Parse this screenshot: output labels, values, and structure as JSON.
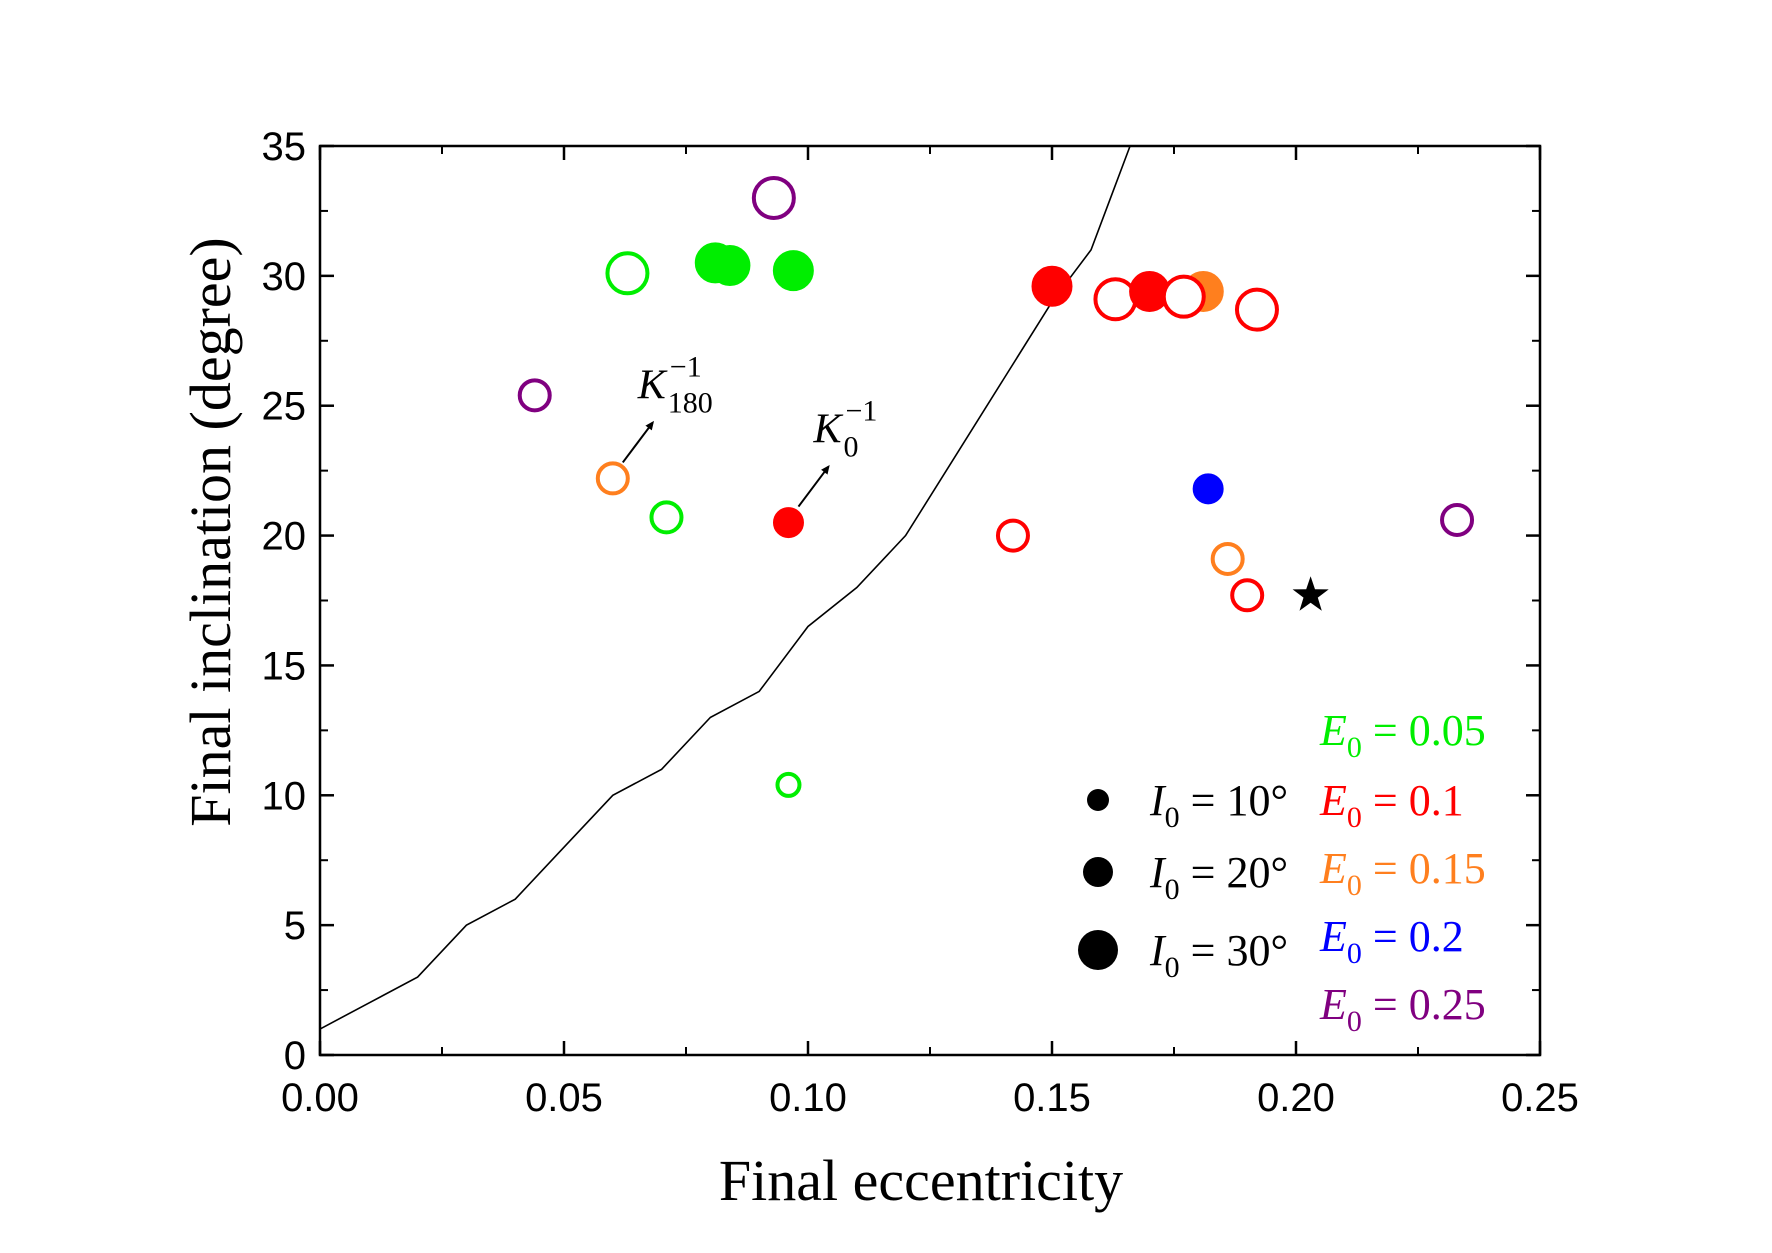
{
  "chart_data": {
    "type": "scatter",
    "xlabel": "Final eccentricity",
    "ylabel": "Final inclination (degree)",
    "xlim": [
      0.0,
      0.25
    ],
    "ylim": [
      0,
      35
    ],
    "x_ticks": [
      "0.00",
      "0.05",
      "0.10",
      "0.15",
      "0.20",
      "0.25"
    ],
    "y_ticks": [
      "0",
      "5",
      "10",
      "15",
      "20",
      "25",
      "30",
      "35"
    ],
    "colors": {
      "0.05": "#00ee00",
      "0.1": "#ff0000",
      "0.15": "#ff7f1e",
      "0.2": "#0000ff",
      "0.25": "#800080"
    },
    "boundary_curve": {
      "x": [
        0.0,
        0.01,
        0.02,
        0.03,
        0.04,
        0.05,
        0.06,
        0.07,
        0.08,
        0.09,
        0.1,
        0.11,
        0.12,
        0.13,
        0.14,
        0.15,
        0.158,
        0.162,
        0.166
      ],
      "y": [
        1,
        2,
        3,
        5,
        6,
        8,
        10,
        11,
        13,
        14,
        16.5,
        18,
        20,
        23,
        26,
        29,
        31,
        33,
        35
      ]
    },
    "points": [
      {
        "x": 0.093,
        "y": 33.0,
        "E0": "0.25",
        "I0": 30,
        "filled": false
      },
      {
        "x": 0.063,
        "y": 30.1,
        "E0": "0.05",
        "I0": 30,
        "filled": false
      },
      {
        "x": 0.081,
        "y": 30.5,
        "E0": "0.05",
        "I0": 30,
        "filled": true
      },
      {
        "x": 0.084,
        "y": 30.4,
        "E0": "0.05",
        "I0": 30,
        "filled": true
      },
      {
        "x": 0.097,
        "y": 30.2,
        "E0": "0.05",
        "I0": 30,
        "filled": true
      },
      {
        "x": 0.15,
        "y": 29.6,
        "E0": "0.1",
        "I0": 30,
        "filled": true
      },
      {
        "x": 0.163,
        "y": 29.1,
        "E0": "0.1",
        "I0": 30,
        "filled": false
      },
      {
        "x": 0.17,
        "y": 29.4,
        "E0": "0.1",
        "I0": 30,
        "filled": true
      },
      {
        "x": 0.181,
        "y": 29.4,
        "E0": "0.15",
        "I0": 30,
        "filled": true
      },
      {
        "x": 0.177,
        "y": 29.2,
        "E0": "0.1",
        "I0": 30,
        "filled": false
      },
      {
        "x": 0.192,
        "y": 28.7,
        "E0": "0.1",
        "I0": 30,
        "filled": false
      },
      {
        "x": 0.044,
        "y": 25.4,
        "E0": "0.25",
        "I0": 20,
        "filled": false
      },
      {
        "x": 0.06,
        "y": 22.2,
        "E0": "0.15",
        "I0": 20,
        "filled": false
      },
      {
        "x": 0.071,
        "y": 20.7,
        "E0": "0.05",
        "I0": 20,
        "filled": false
      },
      {
        "x": 0.096,
        "y": 20.5,
        "E0": "0.1",
        "I0": 20,
        "filled": true
      },
      {
        "x": 0.142,
        "y": 20.0,
        "E0": "0.1",
        "I0": 20,
        "filled": false
      },
      {
        "x": 0.182,
        "y": 21.8,
        "E0": "0.2",
        "I0": 20,
        "filled": true
      },
      {
        "x": 0.186,
        "y": 19.1,
        "E0": "0.15",
        "I0": 20,
        "filled": false
      },
      {
        "x": 0.19,
        "y": 17.7,
        "E0": "0.1",
        "I0": 20,
        "filled": false
      },
      {
        "x": 0.233,
        "y": 20.6,
        "E0": "0.25",
        "I0": 20,
        "filled": false
      },
      {
        "x": 0.096,
        "y": 10.4,
        "E0": "0.05",
        "I0": 10,
        "filled": false
      }
    ],
    "star_marker": {
      "x": 0.203,
      "y": 17.7
    },
    "annotations": [
      {
        "base": "K",
        "sup": "−1",
        "sub": "180",
        "point_x": 0.06,
        "point_y": 22.2
      },
      {
        "base": "K",
        "sup": "−1",
        "sub": "0",
        "point_x": 0.096,
        "point_y": 20.5
      }
    ],
    "legend_size": [
      {
        "I0": 10,
        "label_var": "I",
        "label_sub": "0",
        "label_rest": " = 10°"
      },
      {
        "I0": 20,
        "label_var": "I",
        "label_sub": "0",
        "label_rest": " = 20°"
      },
      {
        "I0": 30,
        "label_var": "I",
        "label_sub": "0",
        "label_rest": " = 30°"
      }
    ],
    "legend_color": [
      {
        "E0": "0.05",
        "label_var": "E",
        "label_sub": "0",
        "label_rest": " = 0.05"
      },
      {
        "E0": "0.1",
        "label_var": "E",
        "label_sub": "0",
        "label_rest": " = 0.1"
      },
      {
        "E0": "0.15",
        "label_var": "E",
        "label_sub": "0",
        "label_rest": " = 0.15"
      },
      {
        "E0": "0.2",
        "label_var": "E",
        "label_sub": "0",
        "label_rest": " = 0.2"
      },
      {
        "E0": "0.25",
        "label_var": "E",
        "label_sub": "0",
        "label_rest": " = 0.25"
      }
    ]
  }
}
